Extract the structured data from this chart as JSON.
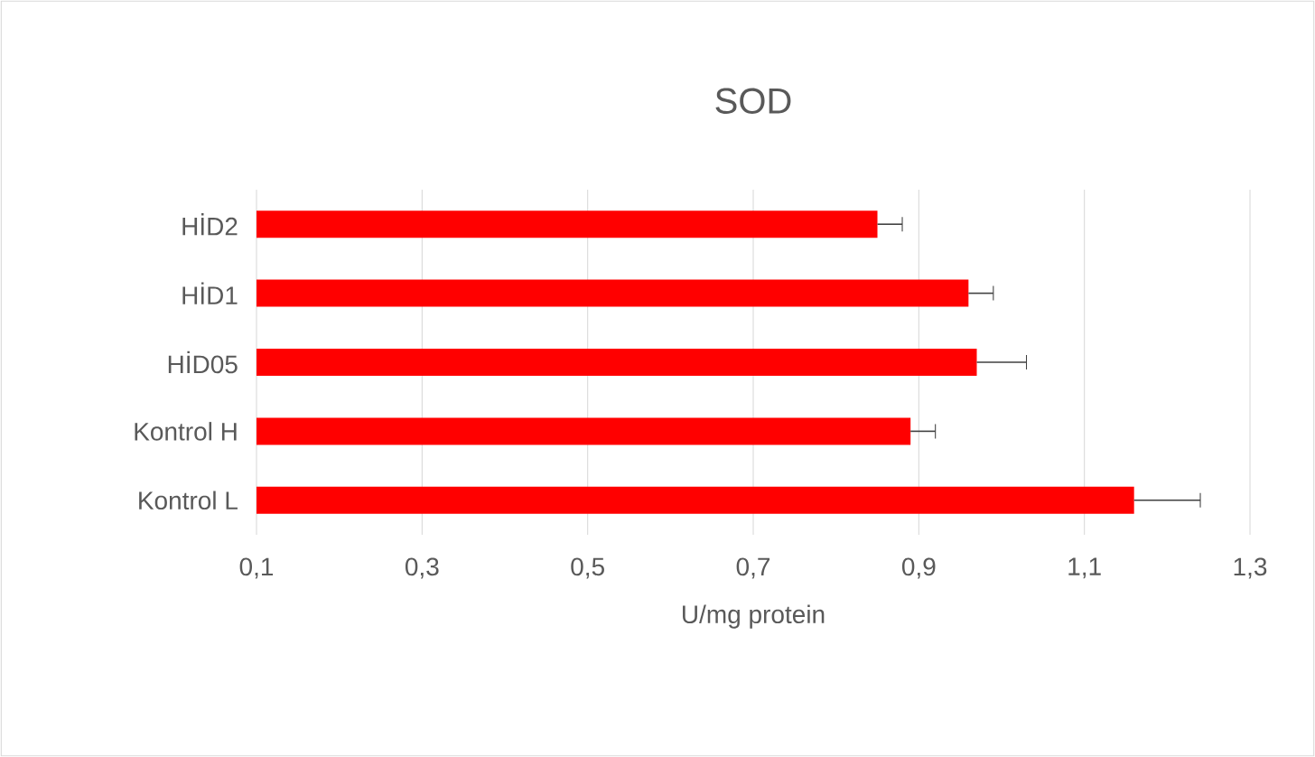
{
  "chart_data": {
    "type": "bar",
    "orientation": "horizontal",
    "title": "SOD",
    "xlabel": "U/mg protein",
    "categories": [
      "HİD2",
      "HİD1",
      "HİD05",
      "Kontrol H",
      "Kontrol L"
    ],
    "values": [
      0.85,
      0.96,
      0.97,
      0.89,
      1.16
    ],
    "errors": [
      [
        0.85,
        0.88
      ],
      [
        0.96,
        0.99
      ],
      [
        0.97,
        1.03
      ],
      [
        0.89,
        0.92
      ],
      [
        1.16,
        1.24
      ]
    ],
    "color": "#ff0000",
    "xlim": [
      0.1,
      1.3
    ],
    "xticks": [
      {
        "value": 0.1,
        "label": "0,1"
      },
      {
        "value": 0.3,
        "label": "0,3"
      },
      {
        "value": 0.5,
        "label": "0,5"
      },
      {
        "value": 0.7,
        "label": "0,7"
      },
      {
        "value": 0.9,
        "label": "0,9"
      },
      {
        "value": 1.1,
        "label": "1,1"
      },
      {
        "value": 1.3,
        "label": "1,3"
      }
    ],
    "grid": "x"
  }
}
